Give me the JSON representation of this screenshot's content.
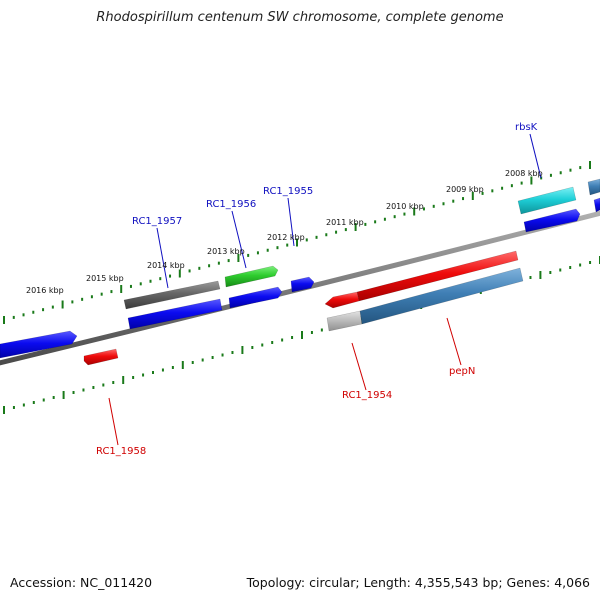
{
  "title": "Rhodospirillum centenum SW chromosome, complete genome",
  "footer": {
    "accession": "Accession: NC_011420",
    "topology": "Topology: circular; Length: 4,355,543 bp; Genes: 4,066"
  },
  "ticks": [
    "2016 kbp",
    "2015 kbp",
    "2014 kbp",
    "2013 kbp",
    "2012 kbp",
    "2011 kbp",
    "2010 kbp",
    "2009 kbp",
    "2008 kbp"
  ],
  "gene_labels": [
    "RC1_1957",
    "RC1_1956",
    "RC1_1955",
    "rbsK",
    "RC1_1958",
    "RC1_1954",
    "pepN"
  ],
  "colors": {
    "blue": "#0b0bf0",
    "red": "#ee0b0b",
    "green": "#2ecc2e",
    "gray": "#666666",
    "cyan": "#1fd0d8",
    "steelblue": "#3f7fb5",
    "lightgray": "#bdbdbd",
    "tick": "#1a7a1a",
    "label_blue": "#1010c0",
    "label_red": "#d00000"
  }
}
